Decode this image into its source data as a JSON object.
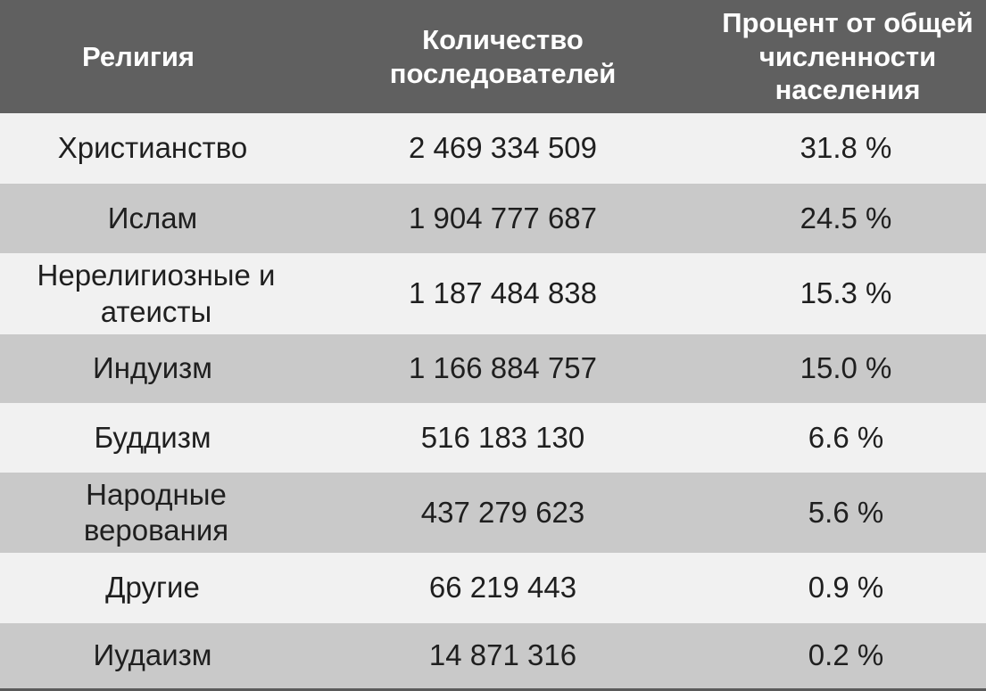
{
  "table": {
    "headers": [
      "Религия",
      "Количество последователей",
      "Процент от общей численности населения"
    ],
    "rows": [
      {
        "religion": "Христианство",
        "followers": "2 469 334 509",
        "percent": "31.8 %"
      },
      {
        "religion": "Ислам",
        "followers": "1 904 777 687",
        "percent": "24.5 %"
      },
      {
        "religion": "Нерелигиозные и атеисты",
        "followers": "1 187 484 838",
        "percent": "15.3 %"
      },
      {
        "religion": "Индуизм",
        "followers": "1 166 884 757",
        "percent": "15.0 %"
      },
      {
        "religion": "Буддизм",
        "followers": "516 183 130",
        "percent": "6.6 %"
      },
      {
        "religion": "Народные верования",
        "followers": "437 279 623",
        "percent": "5.6 %"
      },
      {
        "religion": "Другие",
        "followers": "66 219 443",
        "percent": "0.9 %"
      },
      {
        "religion": "Иудаизм",
        "followers": "14 871 316",
        "percent": "0.2 %"
      }
    ]
  },
  "colors": {
    "header_bg": "#606060",
    "row_light": "#f1f1f1",
    "row_dark": "#c9c9c9"
  }
}
